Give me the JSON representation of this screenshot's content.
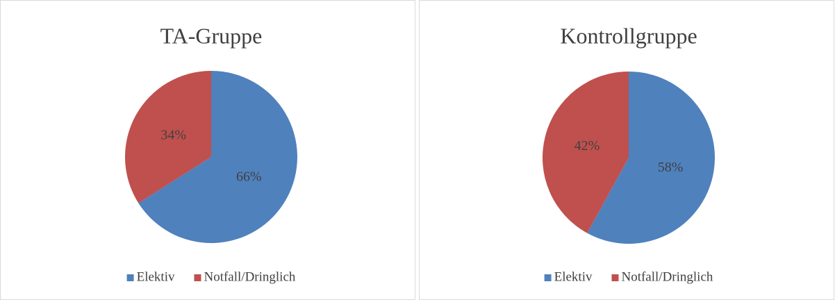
{
  "chart_data": [
    {
      "type": "pie",
      "title": "TA-Gruppe",
      "categories": [
        "Elektiv",
        "Notfall/Dringlich"
      ],
      "values": [
        66,
        34
      ],
      "value_labels": [
        "66%",
        "34%"
      ],
      "colors": [
        "#4f81bd",
        "#c0504d"
      ]
    },
    {
      "type": "pie",
      "title": "Kontrollgruppe",
      "categories": [
        "Elektiv",
        "Notfall/Dringlich"
      ],
      "values": [
        58,
        42
      ],
      "value_labels": [
        "58%",
        "42%"
      ],
      "colors": [
        "#4f81bd",
        "#c0504d"
      ]
    }
  ]
}
